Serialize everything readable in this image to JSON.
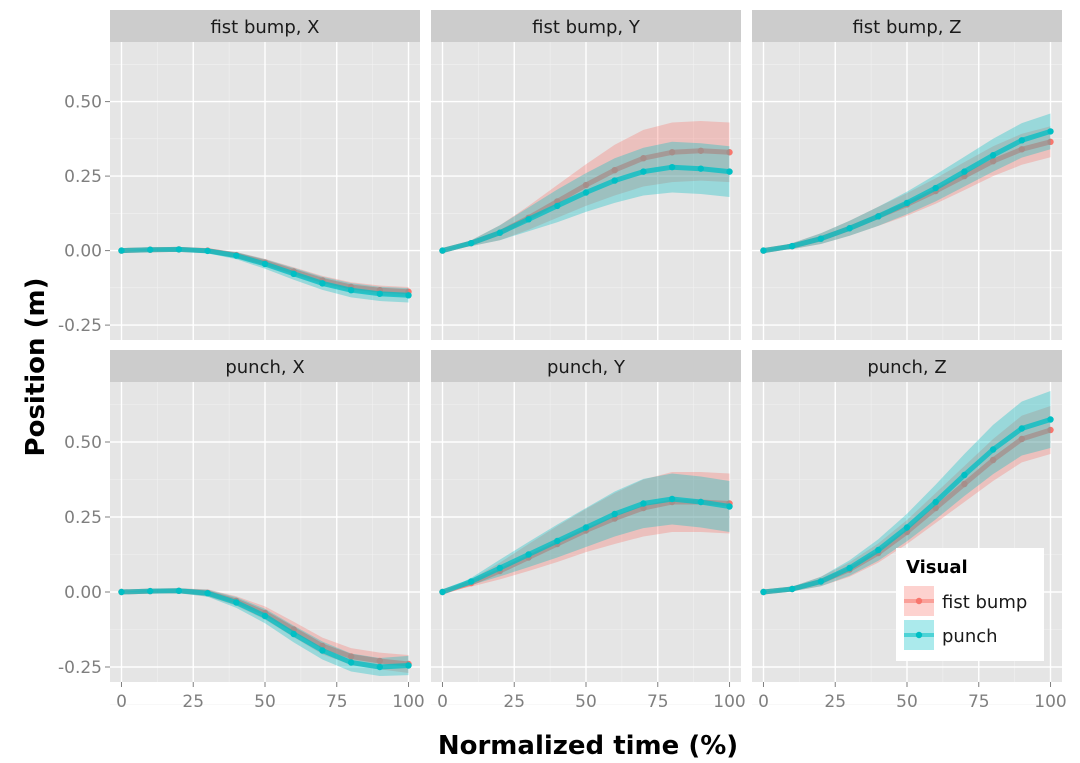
{
  "chart_data": {
    "type": "line",
    "xlabel": "Normalized time (%)",
    "ylabel": "Position (m)",
    "x_ticks": [
      "0",
      "25",
      "50",
      "75",
      "100"
    ],
    "y_ticks": [
      "-0.25",
      "0.00",
      "0.25",
      "0.50"
    ],
    "xlim": [
      -4,
      104
    ],
    "ylim": [
      -0.3,
      0.7
    ],
    "grid": true,
    "legend": {
      "title": "Visual",
      "placement": "bottom-right",
      "entries": [
        {
          "label": "fist bump",
          "color": "#F8766D"
        },
        {
          "label": "punch",
          "color": "#00BFC4"
        }
      ]
    },
    "x": [
      0,
      10,
      20,
      30,
      40,
      50,
      60,
      70,
      80,
      90,
      100
    ],
    "panels": [
      {
        "title": "fist bump, X",
        "series": [
          {
            "name": "fist bump",
            "values": [
              0,
              0.003,
              0.004,
              0,
              -0.015,
              -0.04,
              -0.07,
              -0.1,
              -0.122,
              -0.133,
              -0.138
            ],
            "spread": [
              0,
              0.004,
              0.006,
              0.008,
              0.01,
              0.012,
              0.014,
              0.015,
              0.016,
              0.016,
              0.016
            ]
          },
          {
            "name": "punch",
            "values": [
              0,
              0.003,
              0.004,
              -0.001,
              -0.017,
              -0.045,
              -0.078,
              -0.11,
              -0.133,
              -0.145,
              -0.15
            ],
            "spread": [
              0,
              0.004,
              0.006,
              0.008,
              0.012,
              0.016,
              0.02,
              0.022,
              0.024,
              0.024,
              0.024
            ]
          }
        ]
      },
      {
        "title": "fist bump, Y",
        "series": [
          {
            "name": "fist bump",
            "values": [
              0,
              0.025,
              0.06,
              0.11,
              0.165,
              0.22,
              0.27,
              0.31,
              0.33,
              0.335,
              0.33
            ],
            "spread": [
              0,
              0.01,
              0.025,
              0.04,
              0.055,
              0.07,
              0.085,
              0.095,
              0.1,
              0.1,
              0.1
            ]
          },
          {
            "name": "punch",
            "values": [
              0,
              0.025,
              0.06,
              0.105,
              0.15,
              0.195,
              0.235,
              0.265,
              0.28,
              0.275,
              0.265
            ],
            "spread": [
              0,
              0.01,
              0.025,
              0.04,
              0.055,
              0.065,
              0.075,
              0.08,
              0.085,
              0.085,
              0.085
            ]
          }
        ]
      },
      {
        "title": "fist bump, Z",
        "series": [
          {
            "name": "fist bump",
            "values": [
              0,
              0.015,
              0.04,
              0.075,
              0.115,
              0.155,
              0.2,
              0.25,
              0.3,
              0.34,
              0.365
            ],
            "spread": [
              0,
              0.01,
              0.018,
              0.025,
              0.032,
              0.038,
              0.043,
              0.047,
              0.05,
              0.052,
              0.052
            ]
          },
          {
            "name": "punch",
            "values": [
              0,
              0.015,
              0.04,
              0.075,
              0.115,
              0.16,
              0.21,
              0.265,
              0.32,
              0.37,
              0.4
            ],
            "spread": [
              0,
              0.01,
              0.018,
              0.025,
              0.032,
              0.038,
              0.045,
              0.05,
              0.055,
              0.058,
              0.06
            ]
          }
        ]
      },
      {
        "title": "punch, X",
        "series": [
          {
            "name": "fist bump",
            "values": [
              0,
              0.003,
              0.004,
              -0.003,
              -0.03,
              -0.07,
              -0.125,
              -0.18,
              -0.215,
              -0.23,
              -0.24
            ],
            "spread": [
              0,
              0.005,
              0.008,
              0.012,
              0.016,
              0.022,
              0.026,
              0.028,
              0.028,
              0.028,
              0.03
            ]
          },
          {
            "name": "punch",
            "values": [
              0,
              0.003,
              0.004,
              -0.004,
              -0.035,
              -0.08,
              -0.14,
              -0.195,
              -0.235,
              -0.25,
              -0.245
            ],
            "spread": [
              0,
              0.005,
              0.008,
              0.012,
              0.018,
              0.024,
              0.028,
              0.03,
              0.03,
              0.03,
              0.032
            ]
          }
        ]
      },
      {
        "title": "punch, Y",
        "series": [
          {
            "name": "fist bump",
            "values": [
              0,
              0.03,
              0.07,
              0.115,
              0.16,
              0.205,
              0.245,
              0.28,
              0.3,
              0.3,
              0.295
            ],
            "spread": [
              0,
              0.012,
              0.028,
              0.045,
              0.06,
              0.072,
              0.085,
              0.095,
              0.1,
              0.1,
              0.1
            ]
          },
          {
            "name": "punch",
            "values": [
              0,
              0.035,
              0.08,
              0.125,
              0.17,
              0.215,
              0.26,
              0.295,
              0.31,
              0.3,
              0.285
            ],
            "spread": [
              0,
              0.012,
              0.028,
              0.042,
              0.055,
              0.065,
              0.075,
              0.082,
              0.085,
              0.085,
              0.085
            ]
          }
        ]
      },
      {
        "title": "punch, Z",
        "series": [
          {
            "name": "fist bump",
            "values": [
              0,
              0.01,
              0.035,
              0.075,
              0.13,
              0.2,
              0.28,
              0.36,
              0.44,
              0.51,
              0.54
            ],
            "spread": [
              0,
              0.008,
              0.016,
              0.024,
              0.032,
              0.04,
              0.05,
              0.06,
              0.07,
              0.078,
              0.08
            ]
          },
          {
            "name": "punch",
            "values": [
              0,
              0.01,
              0.035,
              0.08,
              0.14,
              0.215,
              0.3,
              0.39,
              0.475,
              0.545,
              0.575
            ],
            "spread": [
              0,
              0.008,
              0.016,
              0.026,
              0.036,
              0.046,
              0.058,
              0.07,
              0.082,
              0.09,
              0.095
            ]
          }
        ]
      }
    ]
  }
}
